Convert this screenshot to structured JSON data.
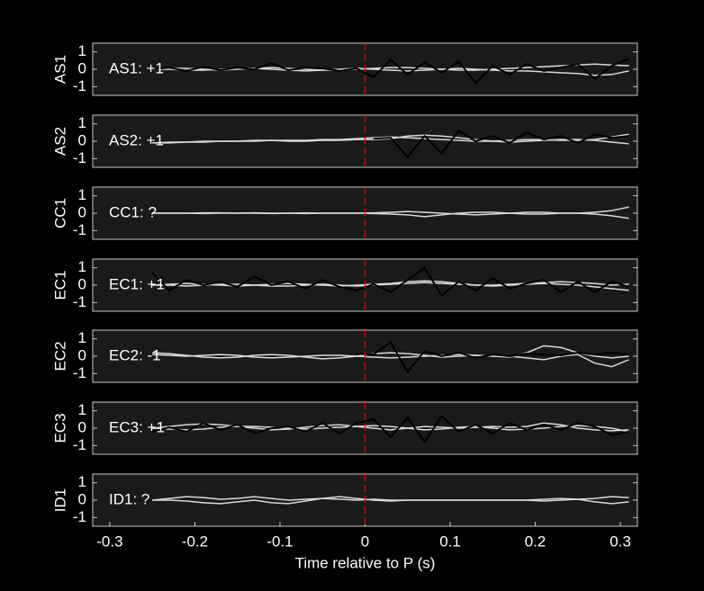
{
  "chart_data": [
    {
      "type": "line",
      "ylabel": "AS1",
      "annotation": "AS1: +1",
      "annotation_color": "#c00000",
      "vline": 0,
      "xlim": [
        -0.32,
        0.32
      ],
      "ylim": [
        -1.5,
        1.5
      ],
      "yticks": [
        -1,
        0,
        1
      ],
      "x": [
        -0.25,
        -0.23,
        -0.21,
        -0.19,
        -0.17,
        -0.15,
        -0.13,
        -0.11,
        -0.09,
        -0.07,
        -0.05,
        -0.03,
        -0.01,
        0.01,
        0.03,
        0.05,
        0.07,
        0.09,
        0.11,
        0.13,
        0.15,
        0.17,
        0.19,
        0.21,
        0.23,
        0.25,
        0.27,
        0.29,
        0.31
      ],
      "series": [
        {
          "color": "#d9d9d9",
          "values": [
            0,
            0.05,
            0.05,
            0,
            -0.05,
            0,
            0.05,
            0.1,
            0.05,
            0,
            -0.05,
            -0.05,
            0,
            0.05,
            0.1,
            0.1,
            0.05,
            0,
            -0.05,
            -0.05,
            0,
            0.05,
            0.1,
            0.15,
            0.2,
            0.25,
            0.3,
            0.25,
            0.2
          ]
        },
        {
          "color": "#d9d9d9",
          "values": [
            0,
            0,
            -0.05,
            -0.05,
            0,
            0.05,
            0.05,
            0,
            -0.05,
            -0.1,
            -0.05,
            0,
            0.05,
            0,
            -0.05,
            -0.1,
            -0.05,
            0,
            0.05,
            0,
            -0.05,
            -0.1,
            -0.1,
            -0.15,
            -0.2,
            -0.25,
            -0.35,
            -0.3,
            -0.1
          ]
        },
        {
          "color": "#000000",
          "values": [
            0,
            0.1,
            -0.1,
            0.15,
            -0.05,
            0.1,
            0,
            0.35,
            -0.05,
            0.1,
            0.05,
            -0.1,
            0.05,
            -0.45,
            0.55,
            -0.3,
            0.4,
            -0.2,
            0.45,
            -0.8,
            0.2,
            -0.3,
            0.3,
            -0.1,
            0.1,
            0.3,
            -0.55,
            0.2,
            0.6
          ]
        }
      ]
    },
    {
      "type": "line",
      "ylabel": "AS2",
      "annotation": "AS2: +1",
      "annotation_color": "#c00000",
      "vline": 0,
      "xlim": [
        -0.32,
        0.32
      ],
      "ylim": [
        -1.5,
        1.5
      ],
      "yticks": [
        -1,
        0,
        1
      ],
      "x": [
        -0.25,
        -0.23,
        -0.21,
        -0.19,
        -0.17,
        -0.15,
        -0.13,
        -0.11,
        -0.09,
        -0.07,
        -0.05,
        -0.03,
        -0.01,
        0.01,
        0.03,
        0.05,
        0.07,
        0.09,
        0.11,
        0.13,
        0.15,
        0.17,
        0.19,
        0.21,
        0.23,
        0.25,
        0.27,
        0.29,
        0.31
      ],
      "series": [
        {
          "color": "#d9d9d9",
          "values": [
            -0.1,
            -0.05,
            -0.05,
            0,
            0,
            0,
            0.05,
            0.05,
            0.05,
            0.05,
            0.1,
            0.1,
            0.15,
            0.2,
            0.25,
            0.2,
            0.15,
            0.1,
            0.05,
            0,
            0,
            0.05,
            0.1,
            0.1,
            0.05,
            0.05,
            0.1,
            0.25,
            0.4
          ]
        },
        {
          "color": "#d9d9d9",
          "values": [
            -0.1,
            -0.1,
            -0.05,
            -0.05,
            0,
            0,
            0,
            0.05,
            0,
            0,
            0.05,
            0.05,
            0.1,
            0.1,
            0.15,
            0.3,
            0.35,
            0.3,
            0.2,
            0.1,
            0,
            -0.05,
            0,
            0.05,
            0.1,
            0.1,
            0.05,
            -0.05,
            -0.15
          ]
        },
        {
          "color": "#000000",
          "values": [
            null,
            null,
            null,
            null,
            null,
            null,
            null,
            null,
            null,
            null,
            null,
            null,
            null,
            0.15,
            0.2,
            -0.9,
            0.3,
            -0.7,
            0.6,
            0,
            0.3,
            -0.1,
            0.5,
            0.1,
            0.3,
            -0.1,
            0.4,
            0.2,
            0.3
          ]
        }
      ]
    },
    {
      "type": "line",
      "ylabel": "CC1",
      "annotation": "CC1: ?",
      "annotation_color": "#909090",
      "vline": 0,
      "xlim": [
        -0.32,
        0.32
      ],
      "ylim": [
        -1.5,
        1.5
      ],
      "yticks": [
        -1,
        0,
        1
      ],
      "x": [
        -0.25,
        -0.23,
        -0.21,
        -0.19,
        -0.17,
        -0.15,
        -0.13,
        -0.11,
        -0.09,
        -0.07,
        -0.05,
        -0.03,
        -0.01,
        0.01,
        0.03,
        0.05,
        0.07,
        0.09,
        0.11,
        0.13,
        0.15,
        0.17,
        0.19,
        0.21,
        0.23,
        0.25,
        0.27,
        0.29,
        0.31
      ],
      "series": [
        {
          "color": "#d9d9d9",
          "values": [
            0,
            0,
            0,
            0.02,
            0.02,
            0,
            0,
            -0.02,
            0,
            0.02,
            0,
            0,
            0,
            0.02,
            0.05,
            0.1,
            0.05,
            0,
            -0.05,
            -0.1,
            -0.05,
            0,
            0.05,
            0.05,
            0,
            0,
            0.05,
            0.15,
            0.35
          ]
        },
        {
          "color": "#d9d9d9",
          "values": [
            0,
            0,
            0,
            -0.02,
            0,
            0,
            0.02,
            0,
            0,
            -0.02,
            0,
            0,
            0,
            -0.02,
            -0.05,
            -0.1,
            -0.2,
            -0.1,
            0,
            0.05,
            0.05,
            0,
            -0.05,
            -0.05,
            0,
            0,
            -0.05,
            -0.15,
            -0.3
          ]
        }
      ]
    },
    {
      "type": "line",
      "ylabel": "EC1",
      "annotation": "EC1: +1",
      "annotation_color": "#c00000",
      "vline": 0,
      "xlim": [
        -0.32,
        0.32
      ],
      "ylim": [
        -1.5,
        1.5
      ],
      "yticks": [
        -1,
        0,
        1
      ],
      "x": [
        -0.25,
        -0.23,
        -0.21,
        -0.19,
        -0.17,
        -0.15,
        -0.13,
        -0.11,
        -0.09,
        -0.07,
        -0.05,
        -0.03,
        -0.01,
        0.01,
        0.03,
        0.05,
        0.07,
        0.09,
        0.11,
        0.13,
        0.15,
        0.17,
        0.19,
        0.21,
        0.23,
        0.25,
        0.27,
        0.29,
        0.31
      ],
      "series": [
        {
          "color": "#d9d9d9",
          "values": [
            0,
            0.05,
            0.1,
            0.05,
            0,
            -0.05,
            0,
            0.05,
            0.1,
            0.05,
            0,
            -0.05,
            0,
            0.05,
            0.1,
            0.2,
            0.25,
            0.2,
            0.1,
            0,
            -0.05,
            0,
            0.05,
            0.1,
            0.05,
            0,
            -0.1,
            -0.2,
            -0.3
          ]
        },
        {
          "color": "#d9d9d9",
          "values": [
            0,
            0,
            -0.05,
            0,
            0.05,
            0.05,
            0,
            -0.05,
            -0.05,
            0,
            0.05,
            0,
            -0.05,
            0,
            0.05,
            0.1,
            0.15,
            0.1,
            0.05,
            0,
            0,
            0.05,
            0.1,
            0.15,
            0.2,
            0.15,
            0.1,
            0,
            0.05
          ]
        },
        {
          "color": "#000000",
          "values": [
            0.7,
            -0.3,
            0.3,
            0,
            0.2,
            -0.1,
            0.5,
            0,
            0.2,
            -0.2,
            0.3,
            -0.1,
            -0.3,
            0.05,
            -0.4,
            0.3,
            1,
            -0.6,
            0.2,
            -0.3,
            0.4,
            -0.2,
            0.1,
            0.3,
            -0.4,
            0.2,
            -0.4,
            0.2,
            -0.1
          ]
        }
      ]
    },
    {
      "type": "line",
      "ylabel": "EC2",
      "annotation": "EC2: -1",
      "annotation_color": "#1a1aa0",
      "vline": 0,
      "xlim": [
        -0.32,
        0.32
      ],
      "ylim": [
        -1.5,
        1.5
      ],
      "yticks": [
        -1,
        0,
        1
      ],
      "x": [
        -0.25,
        -0.23,
        -0.21,
        -0.19,
        -0.17,
        -0.15,
        -0.13,
        -0.11,
        -0.09,
        -0.07,
        -0.05,
        -0.03,
        -0.01,
        0.01,
        0.03,
        0.05,
        0.07,
        0.09,
        0.11,
        0.13,
        0.15,
        0.17,
        0.19,
        0.21,
        0.23,
        0.25,
        0.27,
        0.29,
        0.31
      ],
      "series": [
        {
          "color": "#d9d9d9",
          "values": [
            0.2,
            0.15,
            0.05,
            -0.05,
            -0.1,
            -0.05,
            0.05,
            0.1,
            0.05,
            -0.05,
            -0.15,
            -0.1,
            0,
            0.15,
            0.2,
            0.15,
            0.05,
            -0.05,
            0,
            0.05,
            0,
            -0.05,
            0.2,
            0.6,
            0.5,
            0.2,
            0,
            -0.1,
            0
          ]
        },
        {
          "color": "#d9d9d9",
          "values": [
            0.1,
            0.05,
            0,
            0.05,
            0.1,
            0.05,
            -0.05,
            -0.1,
            -0.05,
            0,
            0.05,
            0.05,
            0,
            -0.05,
            -0.1,
            -0.05,
            0,
            0.05,
            0.1,
            0.05,
            0,
            0,
            -0.1,
            -0.2,
            0,
            0.1,
            -0.4,
            -0.6,
            -0.2
          ]
        },
        {
          "color": "#000000",
          "values": [
            null,
            null,
            null,
            null,
            null,
            null,
            null,
            null,
            null,
            null,
            null,
            null,
            0.15,
            0.1,
            0.8,
            -0.9,
            0.3,
            0,
            0.2,
            -0.1,
            0.1,
            0,
            0.15,
            0.1,
            0.05,
            0.2,
            0.1,
            0.2,
            0.1
          ]
        }
      ]
    },
    {
      "type": "line",
      "ylabel": "EC3",
      "annotation": "EC3: +1",
      "annotation_color": "#c00000",
      "vline": 0,
      "xlim": [
        -0.32,
        0.32
      ],
      "ylim": [
        -1.5,
        1.5
      ],
      "yticks": [
        -1,
        0,
        1
      ],
      "x": [
        -0.25,
        -0.23,
        -0.21,
        -0.19,
        -0.17,
        -0.15,
        -0.13,
        -0.11,
        -0.09,
        -0.07,
        -0.05,
        -0.03,
        -0.01,
        0.01,
        0.03,
        0.05,
        0.07,
        0.09,
        0.11,
        0.13,
        0.15,
        0.17,
        0.19,
        0.21,
        0.23,
        0.25,
        0.27,
        0.29,
        0.31
      ],
      "series": [
        {
          "color": "#d9d9d9",
          "values": [
            0,
            0.1,
            0.2,
            0.25,
            0.2,
            0.1,
            0,
            -0.1,
            -0.05,
            0.05,
            0.15,
            0.2,
            0.1,
            0,
            -0.1,
            0,
            0.1,
            0.05,
            0,
            0.05,
            0.1,
            0.05,
            0.1,
            0.3,
            0.2,
            0,
            -0.1,
            -0.15,
            -0.1
          ]
        },
        {
          "color": "#d9d9d9",
          "values": [
            0,
            -0.05,
            -0.1,
            -0.05,
            0.05,
            0.1,
            0.1,
            0.05,
            0,
            -0.05,
            0,
            0.05,
            0.1,
            0.15,
            0.1,
            0,
            -0.1,
            -0.05,
            0.05,
            0.1,
            0,
            -0.1,
            -0.05,
            0,
            0.1,
            0.15,
            0.1,
            0,
            -0.2
          ]
        },
        {
          "color": "#000000",
          "values": [
            -0.2,
            0.05,
            -0.2,
            0.3,
            -0.1,
            0.2,
            -0.3,
            0,
            0.1,
            -0.2,
            0.3,
            -0.3,
            0.3,
            0.5,
            -0.5,
            0.6,
            -0.8,
            0.7,
            -0.2,
            0.2,
            -0.3,
            0.3,
            -0.1,
            0.2,
            -0.1,
            0.3,
            0.1,
            -0.4,
            -0.2
          ]
        }
      ]
    },
    {
      "type": "line",
      "ylabel": "ID1",
      "annotation": "ID1: ?",
      "annotation_color": "#909090",
      "vline": 0,
      "xlim": [
        -0.32,
        0.32
      ],
      "ylim": [
        -1.5,
        1.5
      ],
      "yticks": [
        -1,
        0,
        1
      ],
      "xticks": [
        -0.3,
        -0.2,
        -0.1,
        0,
        0.1,
        0.2,
        0.3
      ],
      "xlabel": "Time relative to P (s)",
      "x": [
        -0.25,
        -0.23,
        -0.21,
        -0.19,
        -0.17,
        -0.15,
        -0.13,
        -0.11,
        -0.09,
        -0.07,
        -0.05,
        -0.03,
        -0.01,
        0.01,
        0.03,
        0.05,
        0.07,
        0.09,
        0.11,
        0.13,
        0.15,
        0.17,
        0.19,
        0.21,
        0.23,
        0.25,
        0.27,
        0.29,
        0.31
      ],
      "series": [
        {
          "color": "#d9d9d9",
          "values": [
            0,
            0.1,
            0.2,
            0.15,
            0.05,
            0.1,
            0.2,
            0.1,
            0,
            0.05,
            0.1,
            0.05,
            0,
            0.05,
            0,
            0,
            0,
            0,
            0,
            0,
            0,
            0,
            0,
            0.05,
            0.1,
            0.05,
            0.1,
            0.2,
            0.15
          ]
        },
        {
          "color": "#d9d9d9",
          "values": [
            0,
            0,
            -0.05,
            -0.15,
            -0.2,
            -0.1,
            0,
            -0.15,
            -0.2,
            -0.05,
            0.1,
            0.2,
            0.1,
            0,
            -0.05,
            0,
            0,
            0,
            0,
            0,
            0,
            0,
            0,
            -0.05,
            0,
            0.05,
            -0.1,
            -0.2,
            -0.1
          ]
        }
      ]
    }
  ]
}
